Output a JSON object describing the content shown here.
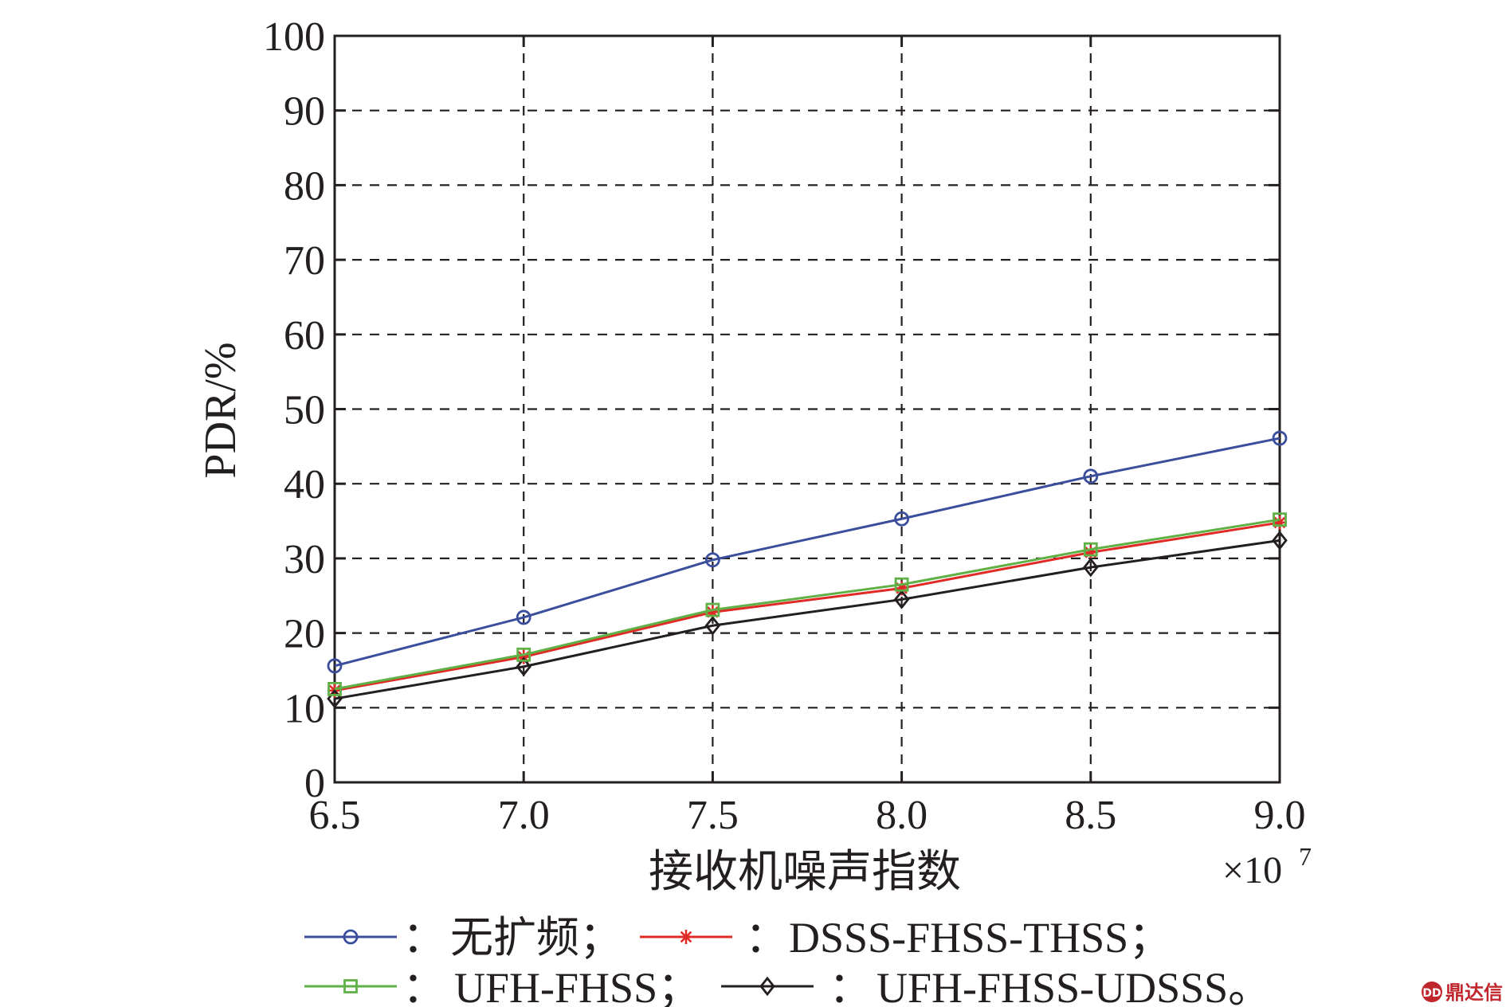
{
  "chart_data": {
    "type": "line",
    "title": "",
    "xlabel": "接收机噪声指数",
    "ylabel": "PDR/%",
    "x_multiplier": "×10",
    "x_multiplier_exp": "7",
    "x": [
      6.5,
      7.0,
      7.5,
      8.0,
      8.5,
      9.0
    ],
    "x_tick_labels": [
      "6.5",
      "7.0",
      "7.5",
      "8.0",
      "8.5",
      "9.0"
    ],
    "xlim": [
      6.5,
      9.0
    ],
    "ylim": [
      0,
      100
    ],
    "y_ticks": [
      0,
      10,
      20,
      30,
      40,
      50,
      60,
      70,
      80,
      90,
      100
    ],
    "y_tick_labels": [
      "0",
      "10",
      "20",
      "30",
      "40",
      "50",
      "60",
      "70",
      "80",
      "90",
      "100"
    ],
    "grid": true,
    "grid_style": "dashed",
    "legend_position": "bottom",
    "series": [
      {
        "name": "无扩频",
        "marker": "circle",
        "color": "#3a4e9c",
        "values": [
          15.6,
          22.1,
          29.8,
          35.3,
          41.0,
          46.1
        ]
      },
      {
        "name": "DSSS-FHSS-THSS",
        "marker": "star",
        "color": "#e02a26",
        "values": [
          12.3,
          16.8,
          22.8,
          26.0,
          30.8,
          34.8
        ]
      },
      {
        "name": "UFH-FHSS",
        "marker": "square",
        "color": "#5fb146",
        "values": [
          12.5,
          17.1,
          23.1,
          26.5,
          31.2,
          35.2
        ]
      },
      {
        "name": "UFH-FHSS-UDSSS",
        "marker": "diamond",
        "color": "#231f20",
        "values": [
          11.2,
          15.5,
          21.0,
          24.5,
          28.8,
          32.4
        ]
      }
    ],
    "legend": {
      "separator": "：",
      "items": [
        {
          "label": "无扩频；"
        },
        {
          "label": "DSSS-FHSS-THSS；"
        },
        {
          "label": "UFH-FHSS；"
        },
        {
          "label": "UFH-FHSS-UDSSS。"
        }
      ]
    }
  },
  "watermark": {
    "text": "鼎达信",
    "color": "#c0272d"
  }
}
